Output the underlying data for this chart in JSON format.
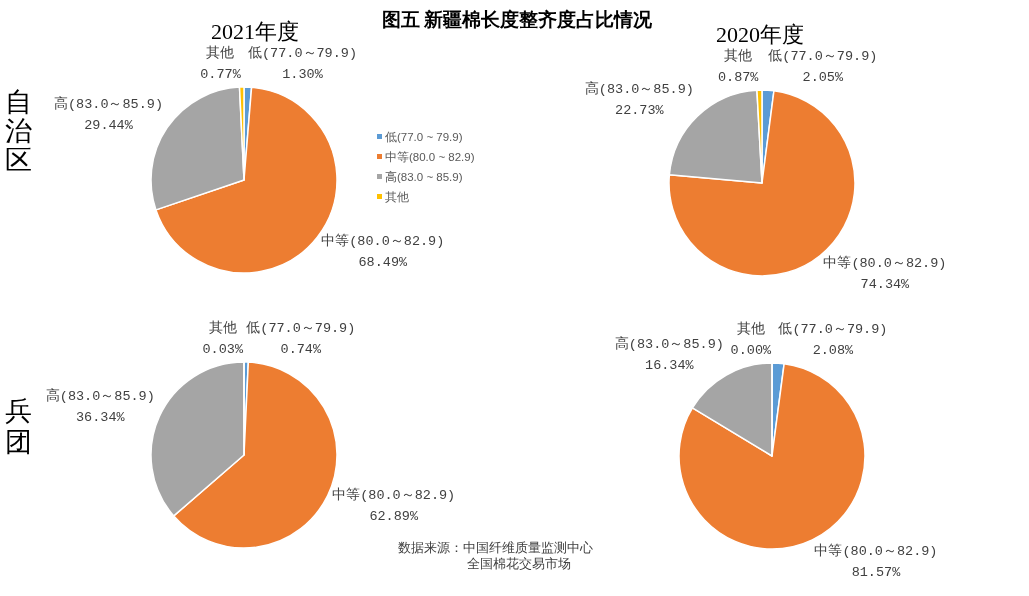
{
  "chart_data": [
    {
      "type": "pie",
      "title": "2021年度",
      "ylabel": "自治区",
      "annotations": [
        "图五 新疆棉长度整齐度占比情况"
      ],
      "categories": [
        "低(77.0 ~ 79.9)",
        "中等(80.0 ~ 82.9)",
        "高(83.0 ~ 85.9)",
        "其他"
      ],
      "values": [
        1.3,
        68.49,
        29.44,
        0.77
      ],
      "colors": [
        "#5b9bd5",
        "#ed7d31",
        "#a5a5a5",
        "#ffc000"
      ],
      "value_labels": [
        "低(77.0～79.9)\n1.30%",
        "中等(80.0～82.9)\n68.49%",
        "高(83.0～85.9)\n29.44%",
        "其他\n0.77%"
      ],
      "legend": "right"
    },
    {
      "type": "pie",
      "title": "2020年度",
      "categories": [
        "低(77.0～79.9)",
        "中等(80.0～82.9)",
        "高(83.0～85.9)",
        "其他"
      ],
      "values": [
        2.05,
        74.34,
        22.73,
        0.87
      ],
      "colors": [
        "#5b9bd5",
        "#ed7d31",
        "#a5a5a5",
        "#ffc000"
      ],
      "value_labels": [
        "2.05%",
        "74.34%",
        "22.73%",
        "0.87%"
      ]
    },
    {
      "type": "pie",
      "ylabel": "兵团",
      "categories": [
        "低(77.0～79.9)",
        "中等(80.0～82.9)",
        "高(83.0～85.9)",
        "其他"
      ],
      "values": [
        0.74,
        62.89,
        36.34,
        0.03
      ],
      "colors": [
        "#5b9bd5",
        "#ed7d31",
        "#a5a5a5",
        "#ffc000"
      ],
      "value_labels": [
        "0.74%",
        "62.89%",
        "36.34%",
        "0.03%"
      ]
    },
    {
      "type": "pie",
      "annotations": [
        "数据来源：中国纤维质量监测中心",
        "全国棉花交易市场"
      ],
      "categories": [
        "低(77.0～79.9)",
        "中等(80.0～82.9)",
        "高(83.0～85.9)",
        "其他"
      ],
      "values": [
        2.08,
        81.57,
        16.34,
        0
      ],
      "colors": [
        "#5b9bd5",
        "#ed7d31",
        "#a5a5a5",
        "#ffc000"
      ],
      "value_labels": [
        "2.08%",
        "81.57%",
        "16.34%",
        "0.00%"
      ]
    }
  ]
}
